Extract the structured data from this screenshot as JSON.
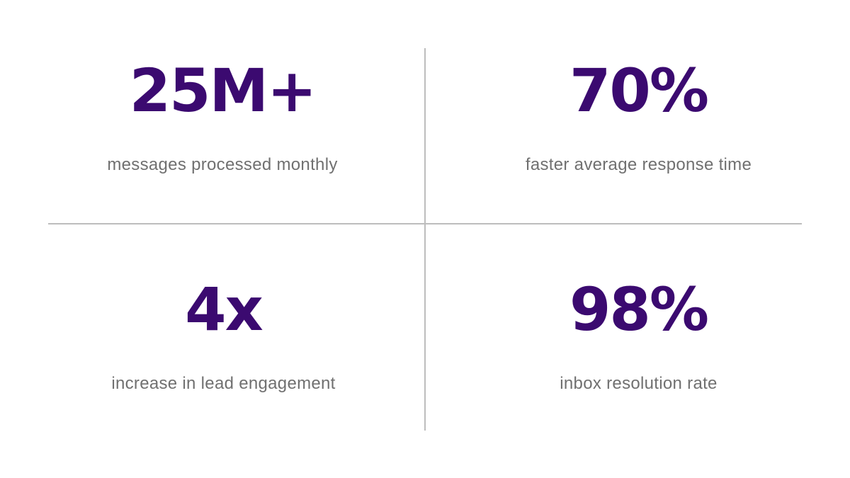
{
  "stats": [
    {
      "value": "25M+",
      "label": "messages processed monthly"
    },
    {
      "value": "70%",
      "label": "faster average response time"
    },
    {
      "value": "4x",
      "label": "increase in lead engagement"
    },
    {
      "value": "98%",
      "label": "inbox resolution rate"
    }
  ],
  "colors": {
    "value_text": "#3b0a70",
    "label_text": "#707070",
    "divider": "#bdbdbd",
    "background": "#ffffff"
  }
}
